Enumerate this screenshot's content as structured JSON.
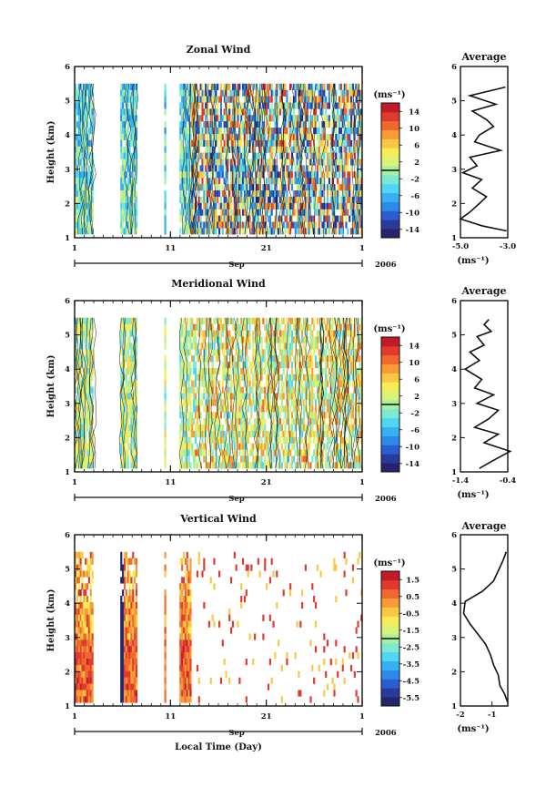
{
  "figure": {
    "x_axis_title": "Local Time (Day)",
    "panels": [
      {
        "title": "Zonal Wind"
      },
      {
        "title": "Meridional Wind"
      },
      {
        "title": "Vertical Wind"
      }
    ]
  },
  "chart_data": [
    {
      "type": "heatmap",
      "title": "Zonal Wind",
      "xlabel": "",
      "ylabel": "Height (km)",
      "x_ticks": [
        "1",
        "11",
        "21",
        "1"
      ],
      "x_month": "Sep",
      "x_year": "2006",
      "xlim_days": [
        1,
        31
      ],
      "ylim": [
        1,
        6
      ],
      "y_ticks": [
        "1",
        "2",
        "3",
        "4",
        "5",
        "6"
      ],
      "colorbar_unit": "(ms⁻¹)",
      "colorbar_ticks": [
        "14",
        "10",
        "6",
        "2",
        "-2",
        "-6",
        "-10",
        "-14"
      ],
      "colorbar_range": [
        -16,
        16
      ],
      "data_gaps_days": [
        [
          3.0,
          5.7
        ],
        [
          7.5,
          9.8
        ],
        [
          9.9,
          10.4
        ],
        [
          10.6,
          12.0
        ]
      ],
      "data_top_km": 5.5,
      "data_bottom_km": 1.1,
      "regime_change_day": 13.2
    },
    {
      "type": "line",
      "title": "Average",
      "xlabel": "(ms⁻¹)",
      "ylabel": "",
      "x_ticks": [
        "-5.0",
        "-3.0"
      ],
      "xlim": [
        -5.0,
        -3.0
      ],
      "ylim": [
        1,
        6
      ],
      "y_ticks": [
        "1",
        "2",
        "3",
        "4",
        "5",
        "6"
      ],
      "series": [
        {
          "x": [
            -3.05,
            -4.1,
            -5.0,
            -4.6,
            -4.2,
            -3.9,
            -4.5,
            -4.1,
            -4.9,
            -4.3,
            -4.6,
            -3.3,
            -4.4,
            -4.2,
            -3.6,
            -3.9,
            -4.5,
            -3.5,
            -4.6,
            -3.1
          ],
          "y": [
            1.2,
            1.35,
            1.55,
            1.75,
            2.0,
            2.2,
            2.45,
            2.7,
            2.9,
            3.1,
            3.35,
            3.55,
            3.8,
            4.0,
            4.25,
            4.45,
            4.7,
            4.9,
            5.15,
            5.4
          ]
        }
      ]
    },
    {
      "type": "heatmap",
      "title": "Meridional Wind",
      "xlabel": "",
      "ylabel": "Height (km)",
      "x_ticks": [
        "1",
        "11",
        "21",
        "1"
      ],
      "x_month": "Sep",
      "x_year": "2006",
      "xlim_days": [
        1,
        31
      ],
      "ylim": [
        1,
        6
      ],
      "y_ticks": [
        "1",
        "2",
        "3",
        "4",
        "5",
        "6"
      ],
      "colorbar_unit": "(ms⁻¹)",
      "colorbar_ticks": [
        "14",
        "10",
        "6",
        "2",
        "-2",
        "-6",
        "-10",
        "-14"
      ],
      "colorbar_range": [
        -16,
        16
      ],
      "data_gaps_days": [
        [
          3.0,
          5.7
        ],
        [
          7.5,
          9.8
        ],
        [
          9.9,
          10.4
        ],
        [
          10.6,
          12.0
        ]
      ],
      "data_top_km": 5.5,
      "data_bottom_km": 1.1,
      "regime_change_day": 13.2
    },
    {
      "type": "line",
      "title": "Average",
      "xlabel": "(ms⁻¹)",
      "ylabel": "",
      "x_ticks": [
        "-1.4",
        "-0.4"
      ],
      "xlim": [
        -1.4,
        -0.4
      ],
      "ylim": [
        1,
        6
      ],
      "y_ticks": [
        "1",
        "2",
        "3",
        "4",
        "5",
        "6"
      ],
      "series": [
        {
          "x": [
            -1.0,
            -0.75,
            -0.35,
            -0.9,
            -0.6,
            -1.1,
            -0.8,
            -0.6,
            -1.05,
            -0.7,
            -1.1,
            -0.95,
            -1.3,
            -1.0,
            -1.2,
            -0.9,
            -1.05,
            -0.75,
            -0.9,
            -0.8
          ],
          "y": [
            1.1,
            1.3,
            1.6,
            1.85,
            2.1,
            2.3,
            2.55,
            2.8,
            3.0,
            3.25,
            3.45,
            3.7,
            4.0,
            4.25,
            4.5,
            4.7,
            4.95,
            5.1,
            5.3,
            5.45
          ]
        }
      ]
    },
    {
      "type": "heatmap",
      "title": "Vertical Wind",
      "xlabel": "Local Time (Day)",
      "ylabel": "Height (km)",
      "x_ticks": [
        "1",
        "11",
        "21",
        "1"
      ],
      "x_month": "Sep",
      "x_year": "2006",
      "xlim_days": [
        1,
        31
      ],
      "ylim": [
        1,
        6
      ],
      "y_ticks": [
        "1",
        "2",
        "3",
        "4",
        "5",
        "6"
      ],
      "colorbar_unit": "(ms⁻¹)",
      "colorbar_ticks": [
        "1.5",
        "0.5",
        "-0.5",
        "-1.5",
        "-2.5",
        "-3.5",
        "-4.5",
        "-5.5"
      ],
      "colorbar_range": [
        -6,
        2
      ],
      "data_gaps_days": [
        [
          3.0,
          5.7
        ],
        [
          7.5,
          9.8
        ],
        [
          9.9,
          10.4
        ],
        [
          10.6,
          12.0
        ]
      ],
      "data_top_km": 5.5,
      "data_bottom_km": 1.1,
      "regime_change_day": 13.2
    },
    {
      "type": "line",
      "title": "Average",
      "xlabel": "(ms⁻¹)",
      "ylabel": "",
      "x_ticks": [
        "-2",
        "-1"
      ],
      "xlim": [
        -2,
        -0.5
      ],
      "ylim": [
        1,
        6
      ],
      "y_ticks": [
        "1",
        "2",
        "3",
        "4",
        "5",
        "6"
      ],
      "series": [
        {
          "x": [
            -0.5,
            -0.6,
            -0.75,
            -0.8,
            -0.95,
            -1.05,
            -1.2,
            -1.45,
            -1.7,
            -1.9,
            -1.85,
            -1.3,
            -0.95,
            -0.8,
            -0.65,
            -0.55
          ],
          "y": [
            1.1,
            1.35,
            1.6,
            1.9,
            2.2,
            2.5,
            2.8,
            3.1,
            3.4,
            3.7,
            4.05,
            4.35,
            4.65,
            4.95,
            5.25,
            5.5
          ]
        }
      ]
    }
  ]
}
